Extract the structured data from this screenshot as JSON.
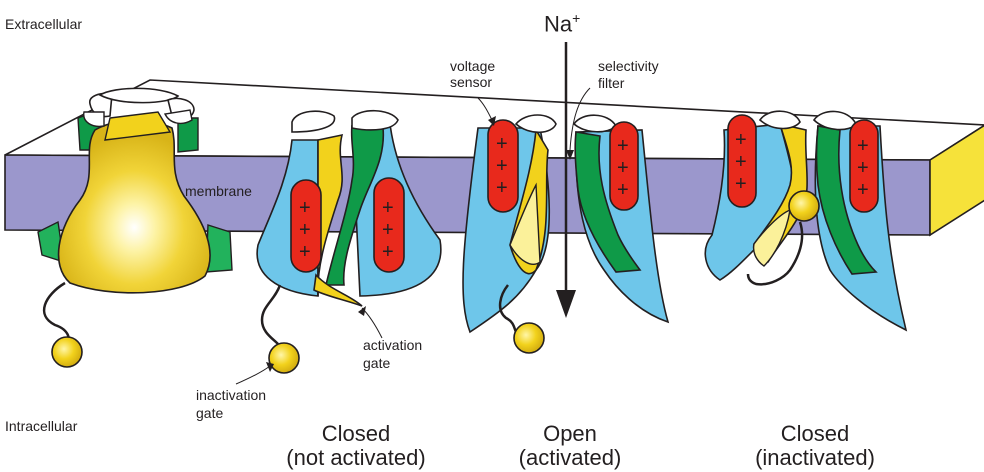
{
  "regions": {
    "extracellular": "Extracellular",
    "intracellular": "Intracellular"
  },
  "labels": {
    "membrane": "membrane",
    "voltage_sensor_1": "voltage",
    "voltage_sensor_2": "sensor",
    "selectivity_filter_1": "selectivity",
    "selectivity_filter_2": "filter",
    "activation_gate_1": "activation",
    "activation_gate_2": "gate",
    "inactivation_gate_1": "inactivation",
    "inactivation_gate_2": "gate"
  },
  "ion": {
    "symbol": "Na",
    "charge": "+"
  },
  "states": [
    {
      "line1": "Closed",
      "line2": "(not activated)"
    },
    {
      "line1": "Open",
      "line2": "(activated)"
    },
    {
      "line1": "Closed",
      "line2": "(inactivated)"
    }
  ],
  "sensor_charge": "+",
  "colors": {
    "membrane": "#9b97cc",
    "channel_blue": "#6ec6ea",
    "helix_green": "#0f9a48",
    "pore_yellow": "#f2d21c",
    "pale_yellow": "#fbf19a",
    "sensor_red": "#e8291c",
    "outline": "#231f20"
  }
}
